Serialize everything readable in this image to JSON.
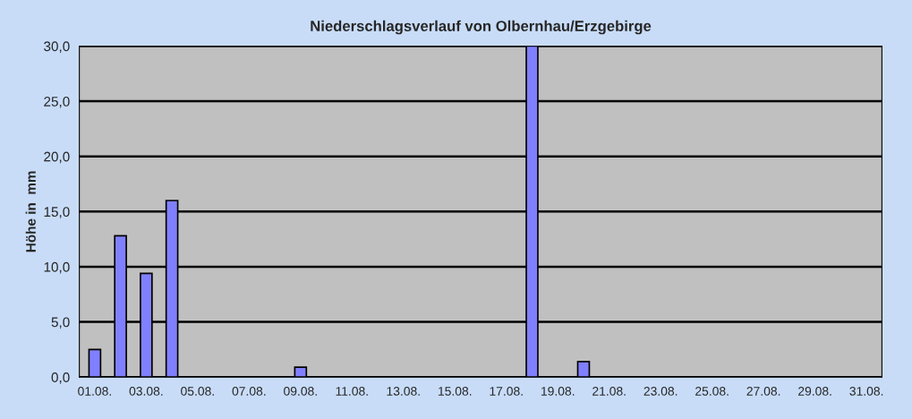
{
  "chart_data": {
    "type": "bar",
    "title": "Niederschlagsverlauf von Olbernhau/Erzgebirge",
    "ylabel": "Höhe in  mm",
    "categories": [
      "01.08.",
      null,
      "03.08.",
      null,
      "05.08.",
      null,
      "07.08.",
      null,
      "09.08.",
      null,
      "11.08.",
      null,
      "13.08.",
      null,
      "15.08.",
      null,
      "17.08.",
      null,
      "19.08.",
      null,
      "21.08.",
      null,
      "23.08.",
      null,
      "25.08.",
      null,
      "27.08.",
      null,
      "29.08.",
      null,
      "31.08."
    ],
    "values": [
      2.5,
      12.8,
      9.4,
      16.0,
      0,
      0,
      0,
      0,
      0.9,
      0,
      0,
      0,
      0,
      0,
      0,
      0,
      0,
      30.0,
      0,
      1.4,
      0,
      0,
      0,
      0,
      0,
      0,
      0,
      0,
      0,
      0,
      0
    ],
    "color": "#8080ff",
    "ylim": [
      0,
      30
    ],
    "yticks": [
      {
        "value": 0,
        "label": "0,0"
      },
      {
        "value": 5,
        "label": "5,0"
      },
      {
        "value": 10,
        "label": "10,0"
      },
      {
        "value": 15,
        "label": "15,0"
      },
      {
        "value": 20,
        "label": "20,0"
      },
      {
        "value": 25,
        "label": "25,0"
      },
      {
        "value": 30,
        "label": "30,0"
      }
    ],
    "grid": "y"
  }
}
